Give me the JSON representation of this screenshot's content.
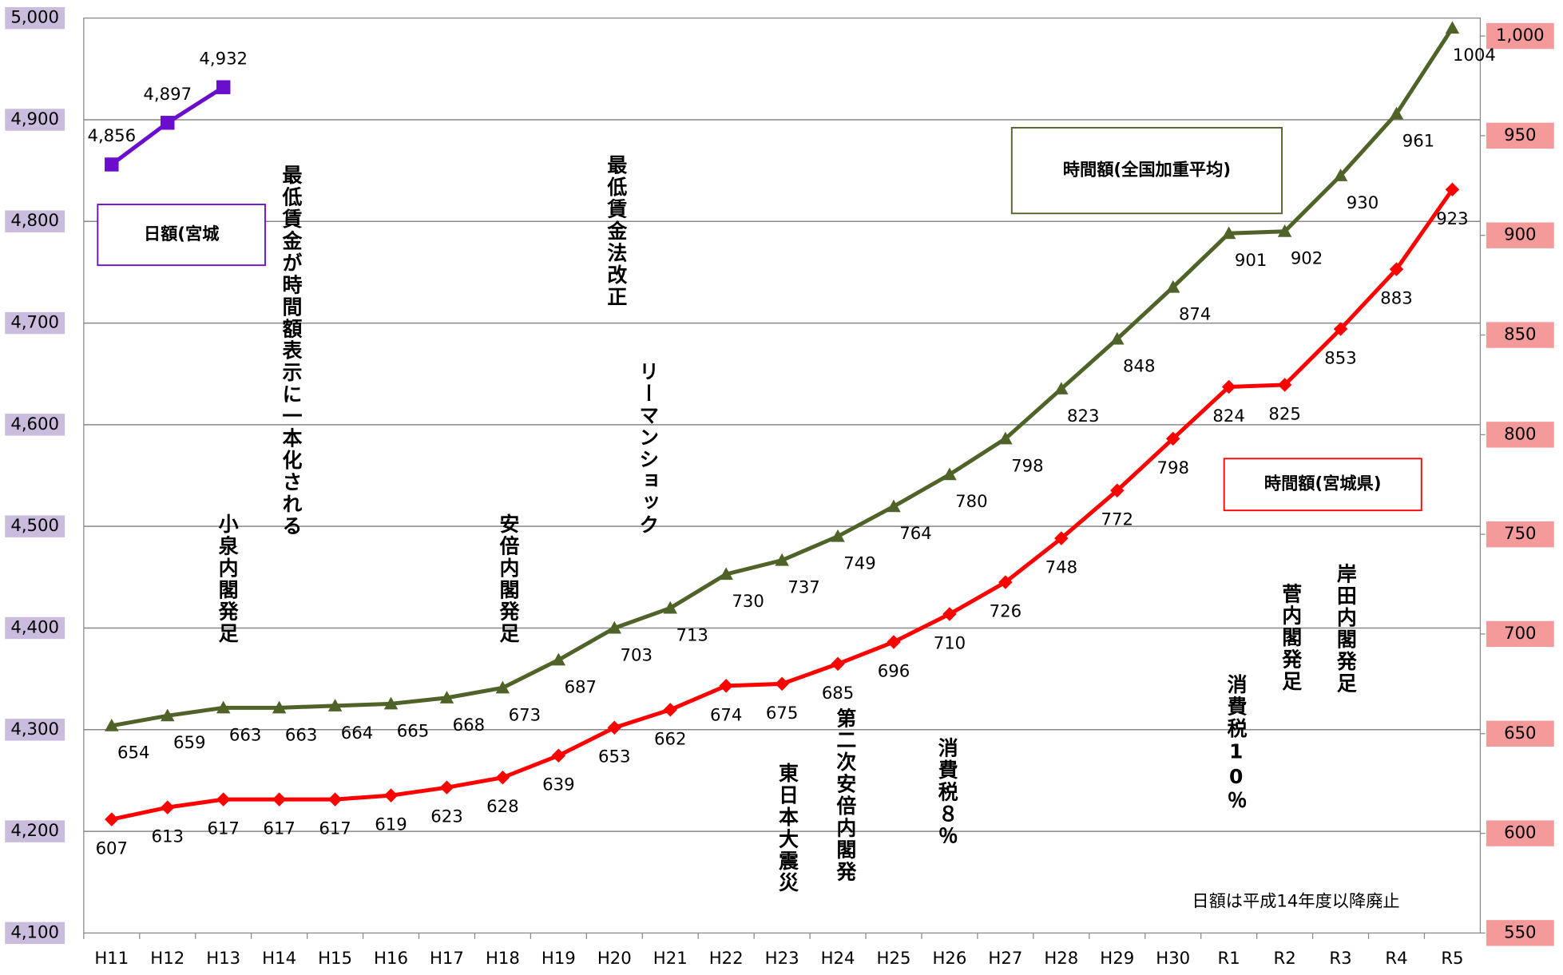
{
  "chart_data": {
    "type": "line",
    "categories": [
      "H11",
      "H12",
      "H13",
      "H14",
      "H15",
      "H16",
      "H17",
      "H18",
      "H19",
      "H20",
      "H21",
      "H22",
      "H23",
      "H24",
      "H25",
      "H26",
      "H27",
      "H28",
      "H29",
      "H30",
      "R1",
      "R2",
      "R3",
      "R4",
      "R5"
    ],
    "series": [
      {
        "name": "日額(宮城",
        "color": "#6a0dcc",
        "marker": "square",
        "values": [
          4856,
          4897,
          4932,
          null,
          null,
          null,
          null,
          null,
          null,
          null,
          null,
          null,
          null,
          null,
          null,
          null,
          null,
          null,
          null,
          null,
          null,
          null,
          null,
          null,
          null
        ],
        "value_labels": [
          "4,856",
          "4,897",
          "4,932",
          null,
          null,
          null,
          null,
          null,
          null,
          null,
          null,
          null,
          null,
          null,
          null,
          null,
          null,
          null,
          null,
          null,
          null,
          null,
          null,
          null,
          null
        ]
      },
      {
        "name": "時間額(全国加重平均)",
        "color": "#4f6228",
        "marker": "triangle",
        "axis": "y2",
        "values": [
          654,
          659,
          663,
          663,
          664,
          665,
          668,
          673,
          687,
          703,
          713,
          730,
          737,
          749,
          764,
          780,
          798,
          823,
          848,
          874,
          901,
          902,
          930,
          961,
          1004
        ]
      },
      {
        "name": "時間額(宮城県)",
        "color": "#ff0000",
        "marker": "diamond",
        "axis": "y2",
        "values": [
          607,
          613,
          617,
          617,
          617,
          619,
          623,
          628,
          639,
          653,
          662,
          674,
          675,
          685,
          696,
          710,
          726,
          748,
          772,
          798,
          824,
          825,
          853,
          883,
          923
        ]
      }
    ],
    "ylim": [
      4100,
      5000
    ],
    "yticks": [
      {
        "value": 4100,
        "label": "4,100"
      },
      {
        "value": 4200,
        "label": "4,200"
      },
      {
        "value": 4300,
        "label": "4,300"
      },
      {
        "value": 4400,
        "label": "4,400"
      },
      {
        "value": 4500,
        "label": "4,500"
      },
      {
        "value": 4600,
        "label": "4,600"
      },
      {
        "value": 4700,
        "label": "4,700"
      },
      {
        "value": 4800,
        "label": "4,800"
      },
      {
        "value": 4900,
        "label": "4,900"
      },
      {
        "value": 5000,
        "label": "5,000"
      }
    ],
    "y2lim": [
      550,
      1009
    ],
    "y2ticks": [
      550,
      600,
      650,
      700,
      750,
      800,
      850,
      900,
      950,
      {
        "value": 1000,
        "label": "1,000"
      }
    ],
    "grid": true,
    "annotations": [
      "小泉内閣発足",
      "最低賃金が時間額表示に一本化される",
      "安倍内閣発足",
      "最低賃金法改正",
      "リーマンショック",
      "東日本大震災",
      "第二次安倍内閣発",
      "消費税８％",
      "消費税10％",
      "菅内閣発足",
      "岸田内閣発足"
    ],
    "note": "日額は平成14年度以降廃止"
  }
}
